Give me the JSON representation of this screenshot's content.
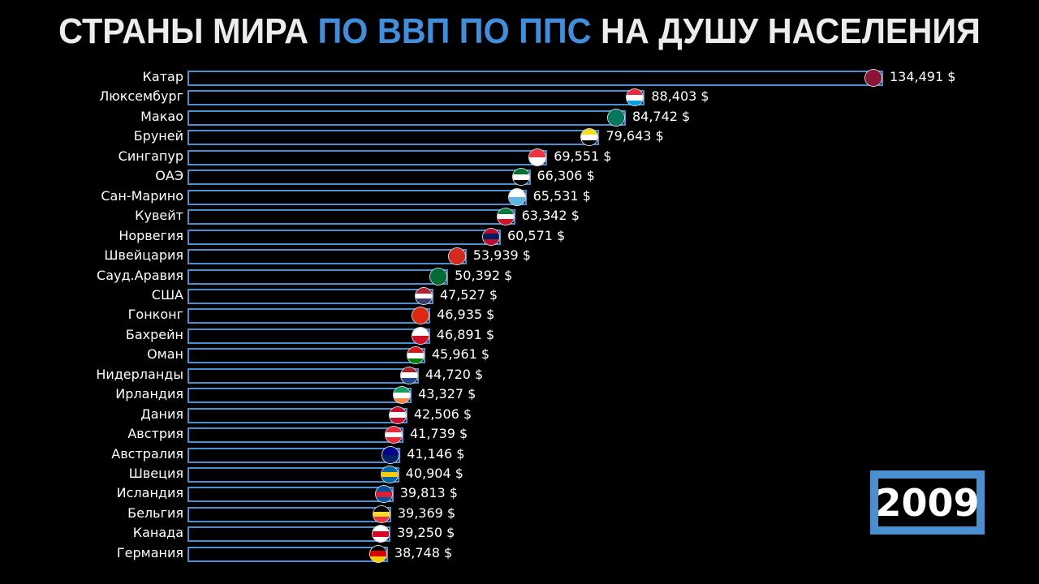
{
  "title": {
    "part1": "СТРАНЫ МИРА",
    "part2": "ПО ВВП ПО ППС",
    "part3": "НА ДУШУ НАСЕЛЕНИЯ"
  },
  "year": "2009",
  "colors": {
    "bar_outline": "#4a8fd0",
    "title_accent": "#3f8fdc",
    "background": "#000000"
  },
  "chart_data": {
    "type": "bar",
    "orientation": "horizontal",
    "unit": "$",
    "categories": [
      "Катар",
      "Люксембург",
      "Макао",
      "Бруней",
      "Сингапур",
      "ОАЭ",
      "Сан-Марино",
      "Кувейт",
      "Норвегия",
      "Швейцария",
      "Сауд.Аравия",
      "США",
      "Гонконг",
      "Бахрейн",
      "Оман",
      "Нидерланды",
      "Ирландия",
      "Дания",
      "Австрия",
      "Австралия",
      "Швеция",
      "Исландия",
      "Бельгия",
      "Канада",
      "Германия"
    ],
    "values": [
      134491,
      88403,
      84742,
      79643,
      69551,
      66306,
      65531,
      63342,
      60571,
      53939,
      50392,
      47527,
      46935,
      46891,
      45961,
      44720,
      43327,
      42506,
      41739,
      41146,
      40904,
      39813,
      39369,
      39250,
      38748
    ],
    "value_labels": [
      "134,491 $",
      "88,403 $",
      "84,742 $",
      "79,643 $",
      "69,551 $",
      "66,306 $",
      "65,531 $",
      "63,342 $",
      "60,571 $",
      "53,939 $",
      "50,392 $",
      "47,527 $",
      "46,935 $",
      "46,891 $",
      "45,961 $",
      "44,720 $",
      "43,327 $",
      "42,506 $",
      "41,739 $",
      "41,146 $",
      "40,904 $",
      "39,813 $",
      "39,369 $",
      "39,250 $",
      "38,748 $"
    ],
    "flag_colors": [
      [
        "#8a1538"
      ],
      [
        "#ed2939",
        "#fff",
        "#00a1de"
      ],
      [
        "#00785e"
      ],
      [
        "#f7e017",
        "#fff",
        "#000"
      ],
      [
        "#ef3340",
        "#fff"
      ],
      [
        "#00732f",
        "#fff",
        "#000"
      ],
      [
        "#fff",
        "#5eb6e4"
      ],
      [
        "#007a3d",
        "#fff",
        "#ce1126"
      ],
      [
        "#ba0c2f",
        "#00205b",
        "#ba0c2f"
      ],
      [
        "#d52b1e"
      ],
      [
        "#006c35"
      ],
      [
        "#b22234",
        "#fff",
        "#3c3b6e"
      ],
      [
        "#de2910"
      ],
      [
        "#fff",
        "#ce1126"
      ],
      [
        "#db161b",
        "#fff",
        "#008000"
      ],
      [
        "#ae1c28",
        "#fff",
        "#21468b"
      ],
      [
        "#169b62",
        "#fff",
        "#ff883e"
      ],
      [
        "#c8102e",
        "#fff",
        "#c8102e"
      ],
      [
        "#ed2939",
        "#fff",
        "#ed2939"
      ],
      [
        "#00008b",
        "#012169"
      ],
      [
        "#006aa7",
        "#fecc00",
        "#006aa7"
      ],
      [
        "#02529c",
        "#dc1e35",
        "#02529c"
      ],
      [
        "#000",
        "#fdda24",
        "#ef3340"
      ],
      [
        "#fff",
        "#d80621",
        "#fff"
      ],
      [
        "#000",
        "#dd0000",
        "#ffce00"
      ]
    ],
    "xlim": [
      0,
      134491
    ]
  }
}
